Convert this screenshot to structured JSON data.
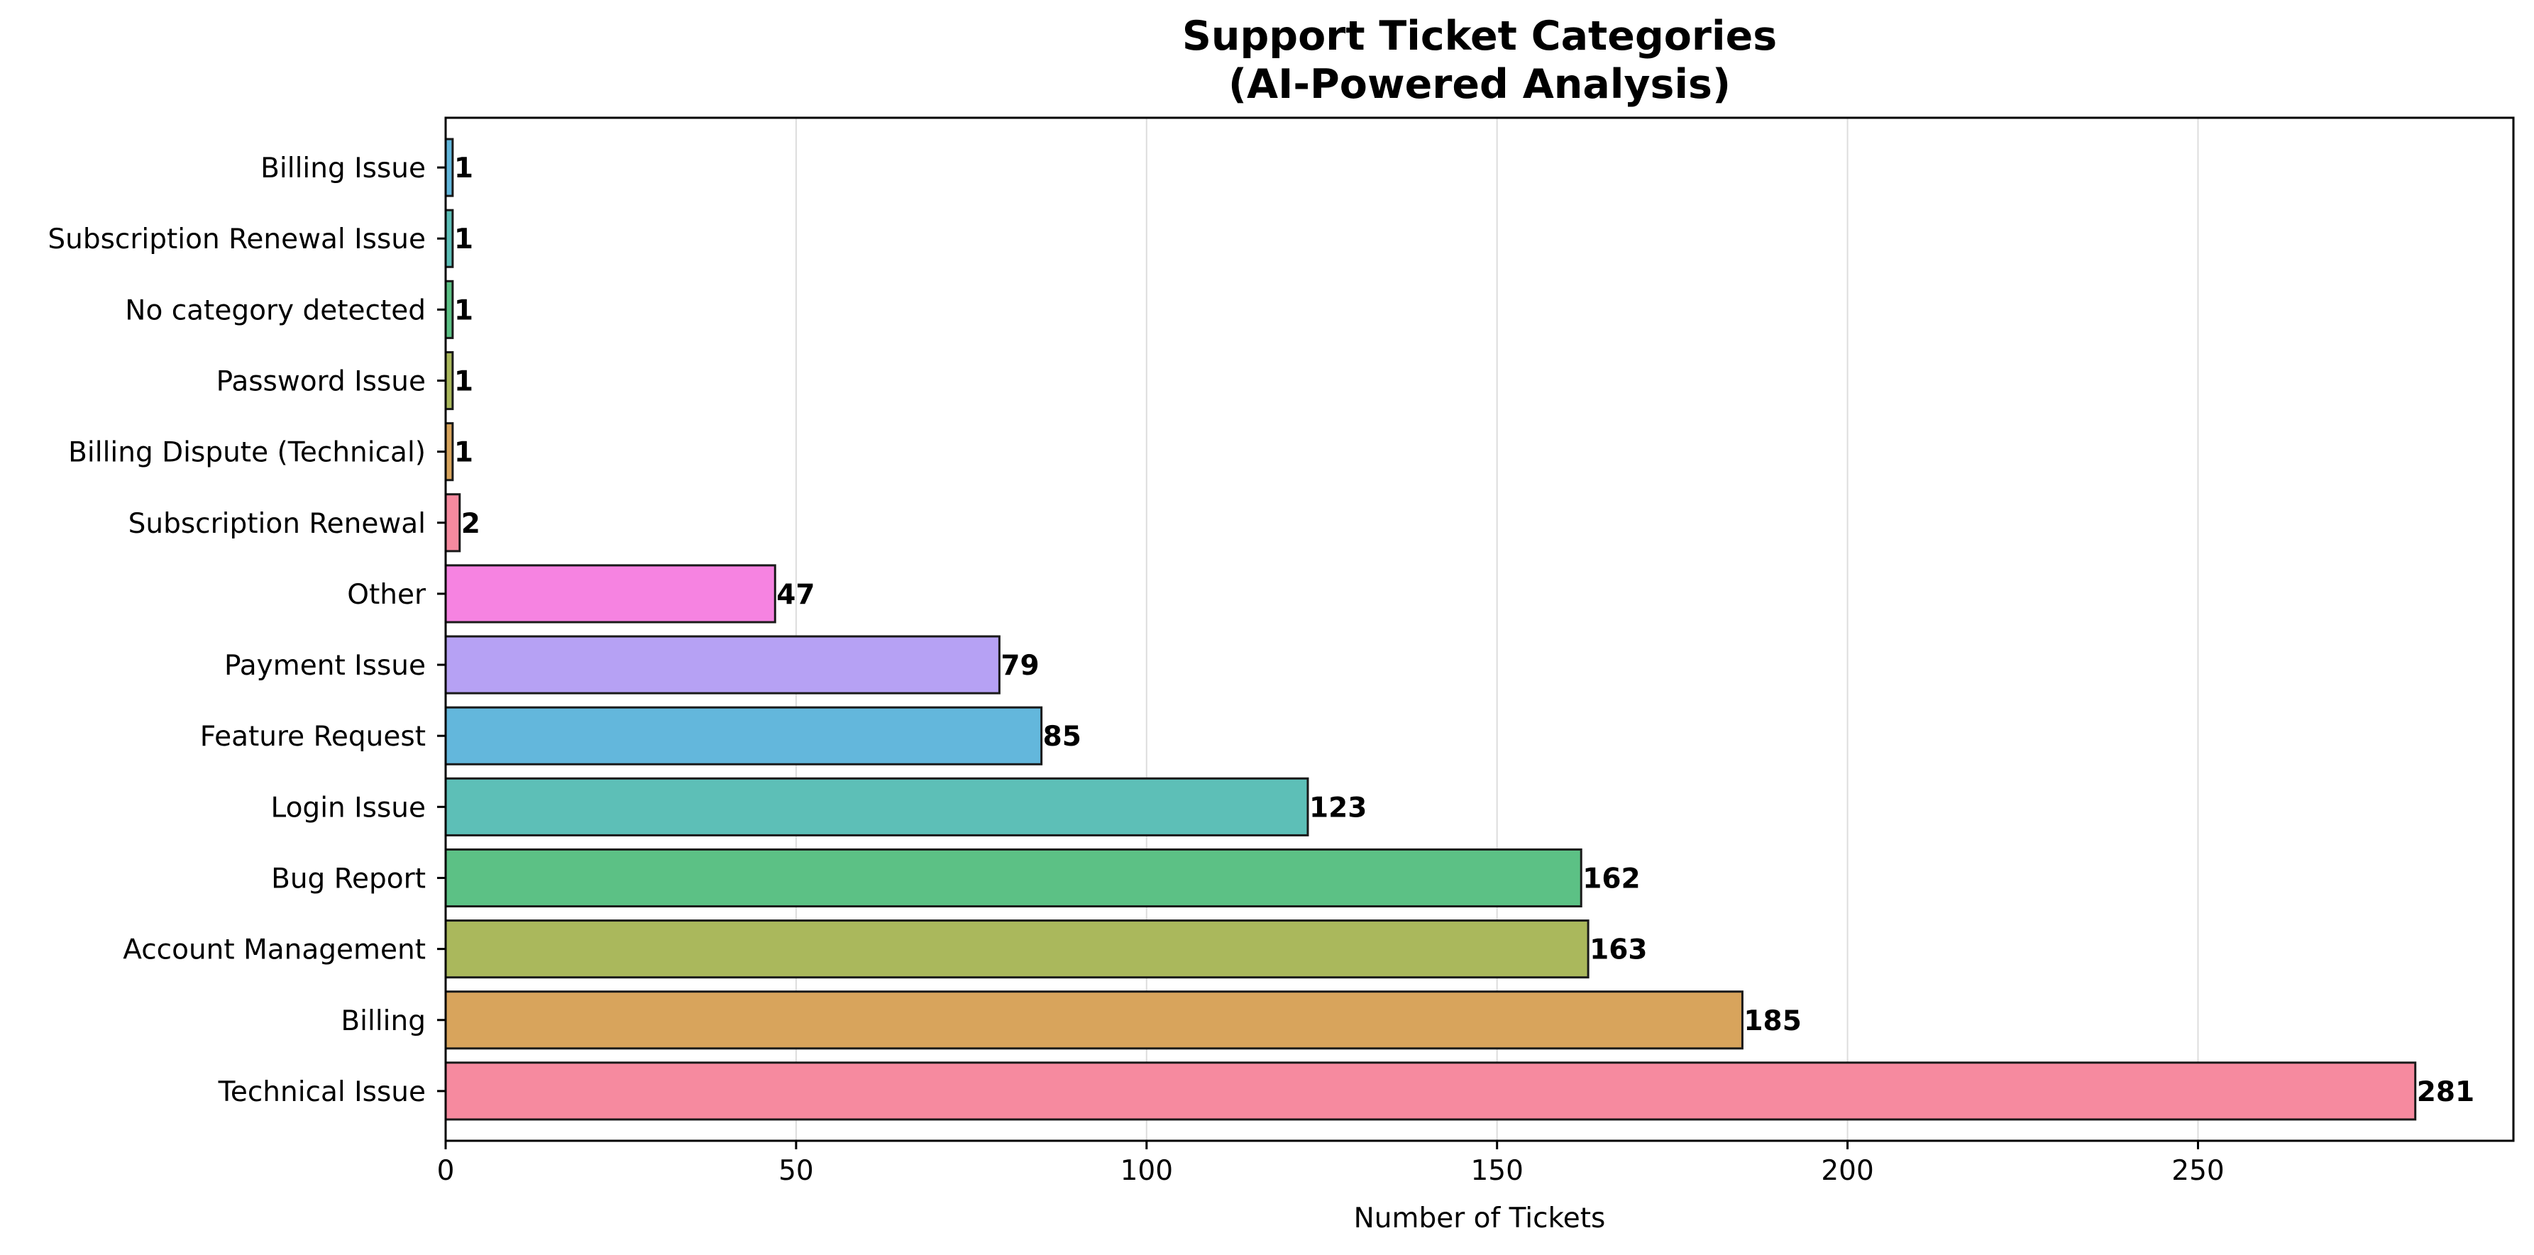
{
  "chart_data": {
    "type": "bar",
    "orientation": "horizontal",
    "title_lines": [
      "Support Ticket Categories",
      "(AI-Powered Analysis)"
    ],
    "xlabel": "Number of Tickets",
    "ylabel": "",
    "xlim": [
      0,
      295
    ],
    "xticks": [
      0,
      50,
      100,
      150,
      200,
      250
    ],
    "grid": "x-major",
    "bar_edge_color": "#1a1a1a",
    "categories": [
      "Technical Issue",
      "Billing",
      "Account Management",
      "Bug Report",
      "Login Issue",
      "Feature Request",
      "Payment Issue",
      "Other",
      "Subscription Renewal",
      "Billing Dispute (Technical)",
      "Password Issue",
      "No category detected",
      "Subscription Renewal Issue",
      "Billing Issue"
    ],
    "values": [
      281,
      185,
      163,
      162,
      123,
      85,
      79,
      47,
      2,
      1,
      1,
      1,
      1,
      1
    ],
    "value_labels": [
      "281",
      "185",
      "163",
      "162",
      "123",
      "85",
      "79",
      "47",
      "2",
      "1",
      "1",
      "1",
      "1",
      "1"
    ],
    "colors": [
      "#f68a9f",
      "#d8a45c",
      "#aab85c",
      "#5cc185",
      "#5dbfb7",
      "#63b7dc",
      "#b6a1f4",
      "#f683e1",
      "#f68a9f",
      "#d8a45c",
      "#aab85c",
      "#5cc185",
      "#5dbfb7",
      "#63b7dc"
    ]
  }
}
